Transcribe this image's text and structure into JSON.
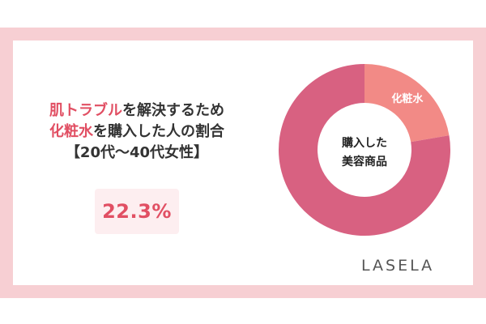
{
  "headline": {
    "line1_accent": "肌トラブル",
    "line1_rest": "を解決するため",
    "line2_accent": "化粧水",
    "line2_rest": "を購入した人の割合",
    "line3": "【20代〜40代女性】"
  },
  "stat": {
    "value": "22.3%"
  },
  "logo": "LASELA",
  "colors": {
    "accent": "#e14f63",
    "slice_highlight": "#f28a86",
    "slice_main": "#d86181",
    "frame": "#f7cfd3"
  },
  "chart_data": {
    "type": "pie",
    "variant": "donut",
    "title": "購入した美容商品",
    "slices": [
      {
        "label": "化粧水",
        "value": 22.3,
        "color": "#f28a86"
      },
      {
        "label": "",
        "value": 77.7,
        "color": "#d86181"
      }
    ]
  }
}
